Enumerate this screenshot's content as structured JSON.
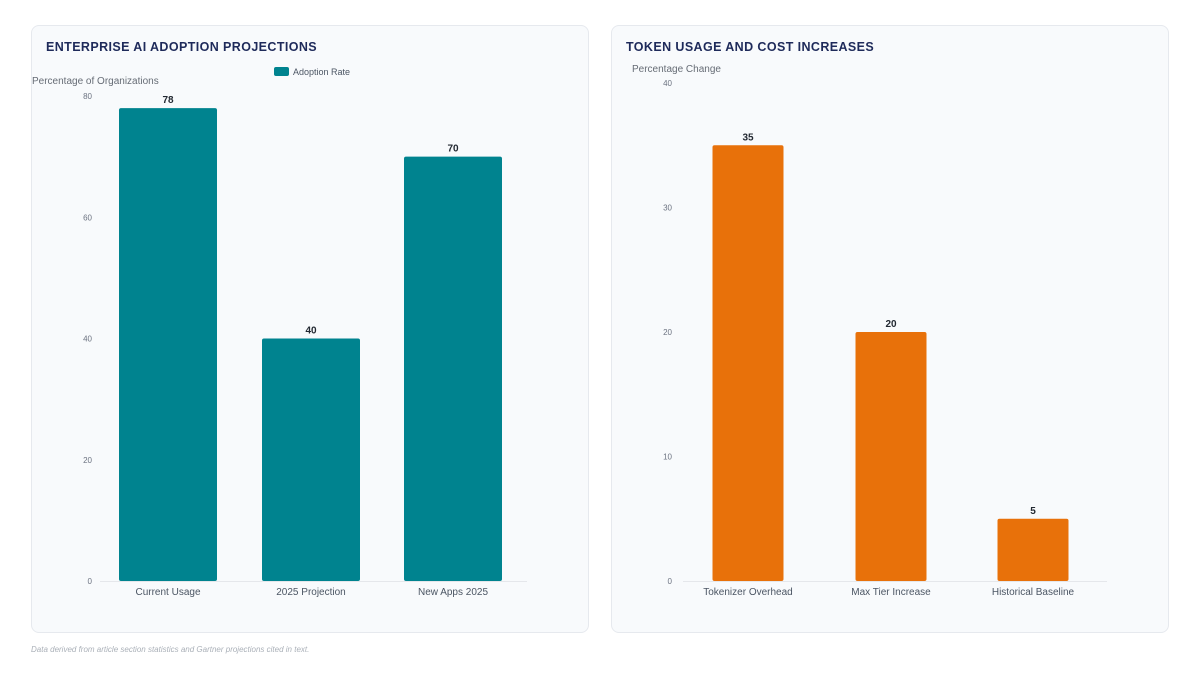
{
  "charts": [
    {
      "title": "ENTERPRISE AI ADOPTION PROJECTIONS",
      "color": "#00838f",
      "chart_data": {
        "type": "bar",
        "title": "ENTERPRISE AI ADOPTION PROJECTIONS",
        "categories": [
          "Current Usage",
          "2025 Projection",
          "New Apps 2025"
        ],
        "series": [
          {
            "name": "Adoption Rate",
            "values": [
              78,
              40,
              70
            ]
          }
        ],
        "xlabel": "",
        "ylabel": "Percentage of Organizations",
        "ylim": [
          0,
          80
        ],
        "yticks": [
          "0",
          "20",
          "40",
          "60",
          "80"
        ],
        "data_labels": [
          "78",
          "40",
          "70"
        ],
        "legend": "top-center",
        "grid": false
      }
    },
    {
      "title": "TOKEN USAGE AND COST INCREASES",
      "color": "#e8710a",
      "chart_data": {
        "type": "bar",
        "title": "TOKEN USAGE AND COST INCREASES",
        "categories": [
          "Tokenizer Overhead",
          "Max Tier Increase",
          "Historical Baseline"
        ],
        "series": [
          {
            "values": [
              35,
              20,
              5
            ]
          }
        ],
        "xlabel": "",
        "ylabel": "Percentage Change",
        "ylim": [
          0,
          40
        ],
        "yticks": [
          "0",
          "10",
          "20",
          "30",
          "40"
        ],
        "data_labels": [
          "35",
          "20",
          "5"
        ],
        "legend": "none",
        "grid": false
      }
    }
  ],
  "footnote": "Data derived from article section statistics and Gartner projections cited in text."
}
